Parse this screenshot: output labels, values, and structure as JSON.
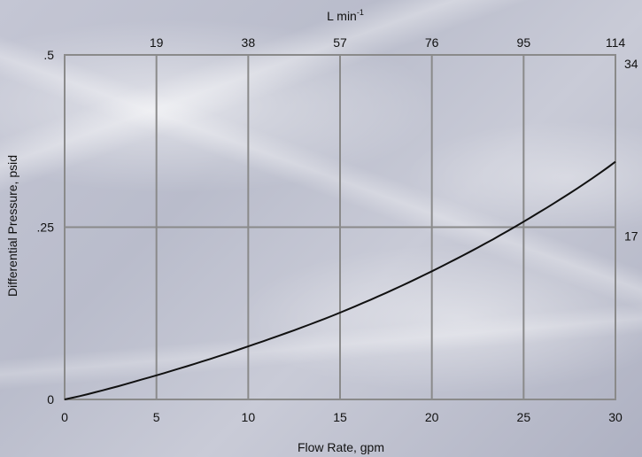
{
  "chart_data": {
    "type": "line",
    "xlabel": "Flow Rate, gpm",
    "ylabel": "Differential Pressure, psid",
    "top_axis_label": "L min",
    "top_axis_label_sup": "-1",
    "xlim": [
      0,
      30
    ],
    "ylim": [
      0,
      0.5
    ],
    "x_ticks": [
      0,
      5,
      10,
      15,
      20,
      25,
      30
    ],
    "x_tick_labels": [
      "0",
      "5",
      "10",
      "15",
      "20",
      "25",
      "30"
    ],
    "y_ticks": [
      0,
      0.25,
      0.5
    ],
    "y_tick_labels": [
      "0",
      ".25",
      ".5"
    ],
    "top_ticks": [
      5,
      10,
      15,
      20,
      25,
      30
    ],
    "top_tick_labels": [
      "19",
      "38",
      "57",
      "76",
      "95",
      "114"
    ],
    "right_ticks": [
      0.25,
      0.5
    ],
    "right_tick_labels": [
      "17",
      "34"
    ],
    "grid": true,
    "line_color": "#111111",
    "grid_color": "#8a8a8a",
    "series": [
      {
        "x": [
          0,
          5,
          10,
          15,
          20,
          25,
          30
        ],
        "y": [
          0,
          0.035,
          0.077,
          0.126,
          0.186,
          0.258,
          0.345
        ]
      }
    ]
  }
}
